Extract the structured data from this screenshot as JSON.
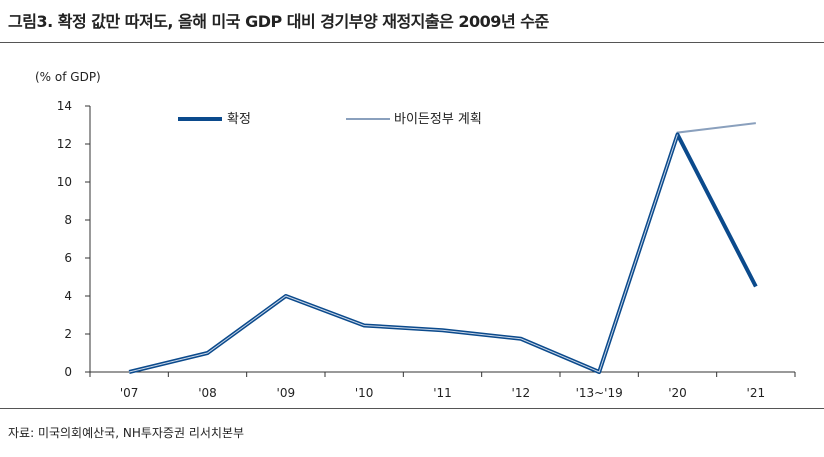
{
  "page": {
    "title": "그림3. 확정 값만 따져도, 올해 미국 GDP 대비 경기부양 재정지출은 2009년 수준",
    "source": "자료: 미국의회예산국, NH투자증권 리서치본부"
  },
  "chart_data": {
    "type": "line",
    "ylabel": "(% of GDP)",
    "ylim": [
      0,
      14
    ],
    "yticks": [
      0,
      2,
      4,
      6,
      8,
      10,
      12,
      14
    ],
    "categories": [
      "'07",
      "'08",
      "'09",
      "'10",
      "'11",
      "'12",
      "'13~'19",
      "'20",
      "'21"
    ],
    "legend_position": "top",
    "series": [
      {
        "name": "확정",
        "color": "#0b4a8c",
        "values": [
          0,
          1.0,
          4.0,
          2.45,
          2.2,
          1.75,
          0,
          12.5,
          4.5
        ]
      },
      {
        "name": "바이든정부 계획",
        "color": "#8aa0bd",
        "values": [
          0,
          1.0,
          4.0,
          2.45,
          2.2,
          1.75,
          0,
          12.6,
          13.1
        ]
      }
    ]
  }
}
